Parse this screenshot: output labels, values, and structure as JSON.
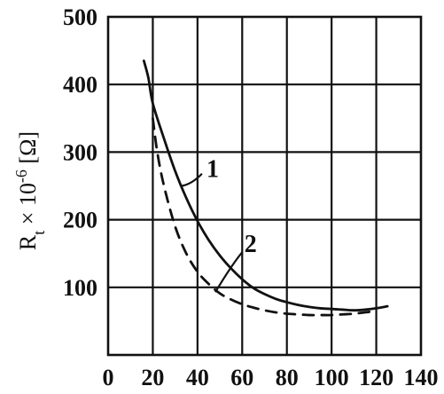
{
  "chart_data": {
    "type": "line",
    "title": "",
    "xlabel": "",
    "ylabel": "R",
    "ylabel_sub": "t",
    "ylabel_rest": " × 10",
    "ylabel_sup": "-6",
    "ylabel_unit": " [Ω]",
    "xlim": [
      0,
      140
    ],
    "ylim": [
      0,
      500
    ],
    "grid": true,
    "x_ticks": [
      "0",
      "20",
      "40",
      "60",
      "80",
      "100",
      "120",
      "140"
    ],
    "y_ticks": [
      "100",
      "200",
      "300",
      "400",
      "500"
    ],
    "series": [
      {
        "name": "1",
        "style": "solid",
        "x": [
          16,
          18,
          20,
          25,
          30,
          35,
          40,
          45,
          50,
          55,
          60,
          65,
          70,
          75,
          80,
          85,
          90,
          95,
          100,
          105,
          110,
          115,
          120,
          125
        ],
        "y": [
          435,
          410,
          372,
          320,
          272,
          232,
          198,
          170,
          147,
          128,
          112,
          99,
          90,
          83,
          78,
          74,
          71,
          69,
          68,
          67,
          66,
          67,
          69,
          72
        ]
      },
      {
        "name": "2",
        "style": "dashed",
        "x": [
          20,
          22,
          25,
          30,
          35,
          40,
          45,
          50,
          55,
          60,
          65,
          70,
          75,
          80,
          85,
          90,
          95,
          100,
          105,
          110,
          115,
          120
        ],
        "y": [
          350,
          300,
          250,
          190,
          150,
          123,
          105,
          91,
          82,
          75,
          70,
          66,
          63,
          61,
          60,
          59,
          59,
          59,
          60,
          61,
          63,
          65
        ]
      }
    ]
  }
}
